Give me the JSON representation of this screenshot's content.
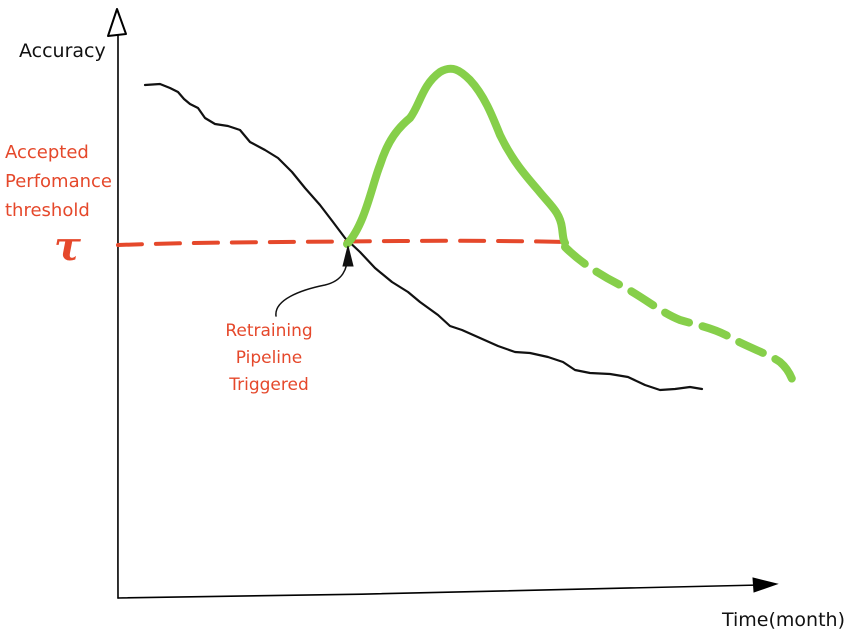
{
  "axes": {
    "y_label": "Accuracy",
    "x_label": "Time(month)"
  },
  "threshold": {
    "label_lines": [
      "Accepted",
      "Perfomance",
      "threshold"
    ],
    "symbol": "τ"
  },
  "annotation": {
    "lines": [
      "Retraining",
      "Pipeline",
      "Triggered"
    ]
  },
  "colors": {
    "axis": "#000000",
    "black_curve": "#111111",
    "threshold": "#e5482b",
    "retrained_curve": "#86cf4a",
    "label_red": "#e5482b"
  }
}
